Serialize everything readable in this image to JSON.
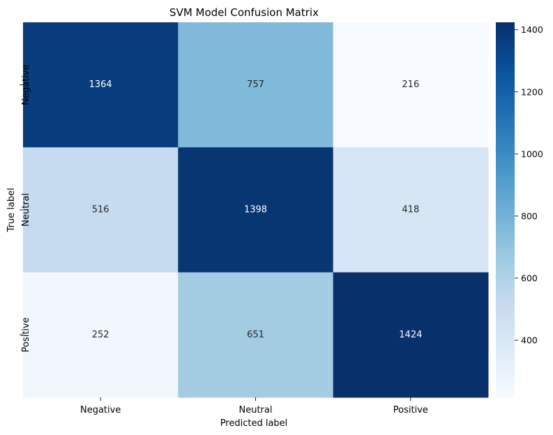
{
  "chart_data": {
    "type": "heatmap",
    "title": "SVM Model Confusion Matrix",
    "xlabel": "Predicted label",
    "ylabel": "True label",
    "x_categories": [
      "Negative",
      "Neutral",
      "Positive"
    ],
    "y_categories": [
      "Negative",
      "Neutral",
      "Positive"
    ],
    "values": [
      [
        1364,
        757,
        216
      ],
      [
        516,
        1398,
        418
      ],
      [
        252,
        651,
        1424
      ]
    ],
    "colormap": "Blues",
    "color_range": [
      216,
      1424
    ],
    "colorbar_ticks": [
      400,
      600,
      800,
      1000,
      1200,
      1400
    ]
  }
}
